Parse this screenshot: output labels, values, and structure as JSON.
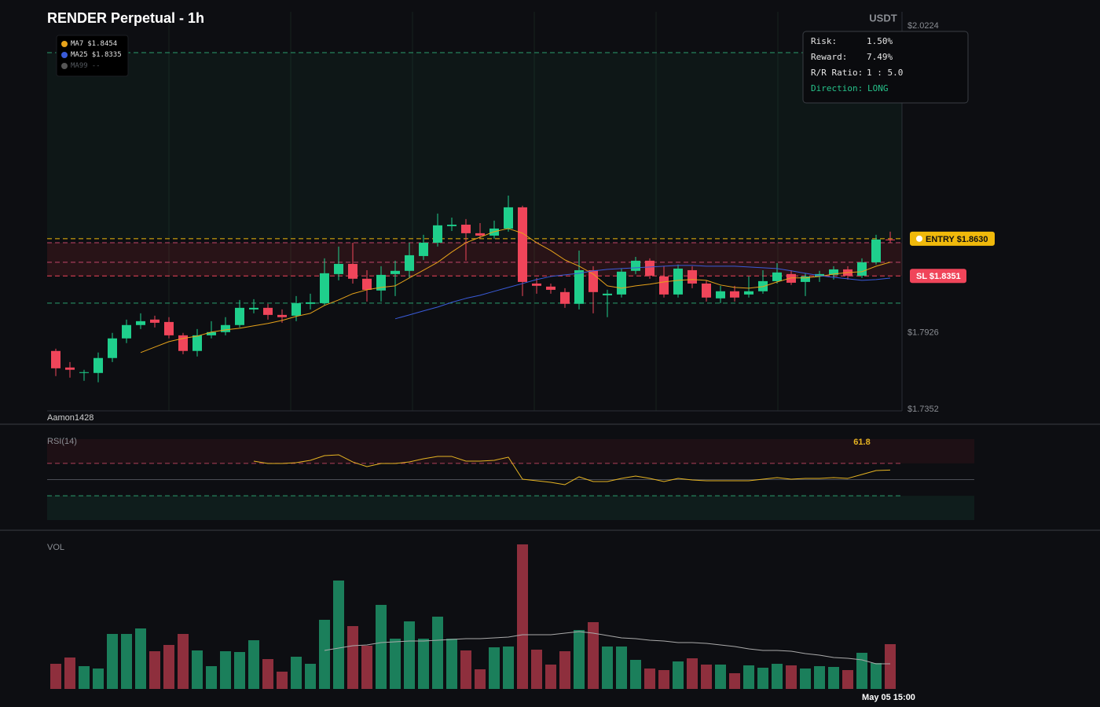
{
  "title": "RENDER Perpetual - 1h",
  "watermark": "Aamon1428",
  "chart_data": [
    {
      "type": "candlestick",
      "unit_label": "USDT",
      "up_color": "#1fcf8c",
      "down_color": "#f0455a",
      "ylim": [
        1.7352,
        2.0224
      ],
      "yticks": [
        {
          "value": 2.0224,
          "label": "$2.0224"
        },
        {
          "value": 1.7926,
          "label": "$1.7926"
        },
        {
          "value": 1.7352,
          "label": "$1.7352"
        }
      ],
      "ohlc": [
        [
          1.7789,
          1.7806,
          1.7601,
          1.7659
        ],
        [
          1.7665,
          1.7706,
          1.7589,
          1.7648
        ],
        [
          1.7624,
          1.7648,
          1.7565,
          1.763
        ],
        [
          1.7624,
          1.7777,
          1.7554,
          1.7736
        ],
        [
          1.7736,
          1.7924,
          1.7706,
          1.7883
        ],
        [
          1.7883,
          1.8024,
          1.7848,
          1.7983
        ],
        [
          1.7983,
          1.8071,
          1.7953,
          1.8012
        ],
        [
          1.8024,
          1.8053,
          1.7965,
          1.8
        ],
        [
          1.8006,
          1.8042,
          1.7883,
          1.7906
        ],
        [
          1.7906,
          1.7924,
          1.7765,
          1.7789
        ],
        [
          1.7789,
          1.7953,
          1.7748,
          1.7906
        ],
        [
          1.7906,
          1.8012,
          1.7883,
          1.793
        ],
        [
          1.793,
          1.8042,
          1.7906,
          1.7983
        ],
        [
          1.7983,
          1.8171,
          1.7965,
          1.8112
        ],
        [
          1.81,
          1.8177,
          1.8071,
          1.8112
        ],
        [
          1.8112,
          1.8142,
          1.8024,
          1.8059
        ],
        [
          1.8059,
          1.81,
          1.8,
          1.8042
        ],
        [
          1.8053,
          1.82,
          1.8012,
          1.8147
        ],
        [
          1.8142,
          1.8218,
          1.81,
          1.8153
        ],
        [
          1.8147,
          1.8483,
          1.813,
          1.8371
        ],
        [
          1.8365,
          1.8571,
          1.8318,
          1.8441
        ],
        [
          1.8441,
          1.86,
          1.8294,
          1.833
        ],
        [
          1.833,
          1.8394,
          1.8159,
          1.8247
        ],
        [
          1.8242,
          1.8424,
          1.8159,
          1.8359
        ],
        [
          1.8365,
          1.8465,
          1.82,
          1.8389
        ],
        [
          1.8389,
          1.86,
          1.8336,
          1.8506
        ],
        [
          1.85,
          1.8659,
          1.8471,
          1.86
        ],
        [
          1.86,
          1.8818,
          1.8571,
          1.873
        ],
        [
          1.8724,
          1.8788,
          1.8688,
          1.8735
        ],
        [
          1.8735,
          1.8777,
          1.8465,
          1.8671
        ],
        [
          1.8671,
          1.8747,
          1.863,
          1.8653
        ],
        [
          1.8653,
          1.8765,
          1.863,
          1.8706
        ],
        [
          1.8706,
          1.8953,
          1.8683,
          1.8865
        ],
        [
          1.8865,
          1.8877,
          1.82,
          1.8306
        ],
        [
          1.8294,
          1.8336,
          1.8218,
          1.8277
        ],
        [
          1.8271,
          1.8294,
          1.8218,
          1.8247
        ],
        [
          1.823,
          1.8259,
          1.8112,
          1.8142
        ],
        [
          1.8142,
          1.8541,
          1.81,
          1.8394
        ],
        [
          1.8394,
          1.8424,
          1.8071,
          1.823
        ],
        [
          1.8206,
          1.8247,
          1.8042,
          1.8218
        ],
        [
          1.8212,
          1.8406,
          1.8189,
          1.8383
        ],
        [
          1.8389,
          1.8494,
          1.8365,
          1.8465
        ],
        [
          1.8465,
          1.8483,
          1.833,
          1.8353
        ],
        [
          1.8347,
          1.8424,
          1.8189,
          1.8212
        ],
        [
          1.8212,
          1.8436,
          1.8189,
          1.8406
        ],
        [
          1.8394,
          1.8424,
          1.8259,
          1.8294
        ],
        [
          1.8294,
          1.8318,
          1.8159,
          1.8189
        ],
        [
          1.8183,
          1.8277,
          1.8147,
          1.8236
        ],
        [
          1.8236,
          1.8277,
          1.8159,
          1.8189
        ],
        [
          1.8212,
          1.8347,
          1.8189,
          1.8236
        ],
        [
          1.8236,
          1.8394,
          1.8218,
          1.8312
        ],
        [
          1.8312,
          1.8447,
          1.8294,
          1.8377
        ],
        [
          1.8365,
          1.8394,
          1.8283,
          1.83
        ],
        [
          1.8306,
          1.8371,
          1.82,
          1.8347
        ],
        [
          1.8347,
          1.8389,
          1.8306,
          1.8365
        ],
        [
          1.8359,
          1.8424,
          1.8324,
          1.84
        ],
        [
          1.84,
          1.8424,
          1.8324,
          1.8353
        ],
        [
          1.8353,
          1.8483,
          1.8336,
          1.8453
        ],
        [
          1.8453,
          1.8659,
          1.8436,
          1.8624
        ],
        [
          1.8624,
          1.8683,
          1.86,
          1.8618
        ]
      ],
      "series": [
        {
          "name": "MA7",
          "color": "#e6a21a",
          "value_label": "$1.8454",
          "values": [
            null,
            null,
            null,
            null,
            null,
            null,
            1.7777,
            1.7818,
            1.7859,
            1.7883,
            1.79,
            1.793,
            1.7947,
            1.7959,
            1.7977,
            1.7995,
            1.8018,
            1.8048,
            1.8071,
            1.813,
            1.8171,
            1.8218,
            1.8247,
            1.8265,
            1.8277,
            1.8336,
            1.8394,
            1.8453,
            1.853,
            1.86,
            1.8641,
            1.8683,
            1.8706,
            1.8671,
            1.86,
            1.8541,
            1.8471,
            1.8424,
            1.8365,
            1.8277,
            1.8259,
            1.8277,
            1.8289,
            1.8306,
            1.8318,
            1.8324,
            1.8318,
            1.8283,
            1.8265,
            1.8259,
            1.8271,
            1.8306,
            1.8336,
            1.8336,
            1.8347,
            1.8365,
            1.8377,
            1.8383,
            1.8424,
            1.8454
          ]
        },
        {
          "name": "MA25",
          "color": "#3a5bd9",
          "value_label": "$1.8335",
          "values": [
            null,
            null,
            null,
            null,
            null,
            null,
            null,
            null,
            null,
            null,
            null,
            null,
            null,
            null,
            null,
            null,
            null,
            null,
            null,
            null,
            null,
            null,
            null,
            null,
            1.803,
            1.8059,
            1.8089,
            1.8118,
            1.8153,
            1.8183,
            1.8206,
            1.8236,
            1.8265,
            1.8294,
            1.8324,
            1.8347,
            1.8359,
            1.8371,
            1.8389,
            1.84,
            1.8406,
            1.8412,
            1.8418,
            1.8424,
            1.843,
            1.843,
            1.8424,
            1.8424,
            1.8424,
            1.8418,
            1.8412,
            1.8406,
            1.8389,
            1.8371,
            1.8353,
            1.8341,
            1.833,
            1.8318,
            1.8324,
            1.8335
          ]
        },
        {
          "name": "MA99",
          "color": "#555555",
          "value_label": "--",
          "values": []
        }
      ],
      "take_profit": {
        "value": 2.0024,
        "color": "#2a9d6e"
      },
      "entry": {
        "label": "ENTRY $1.8630",
        "value": 1.863,
        "color": "#f0b90b"
      },
      "stop_loss": {
        "label": "SL $1.8351",
        "value": 1.8351,
        "color": "#f0455a"
      },
      "levels": [
        {
          "value": 1.86,
          "color": "#c2466a"
        },
        {
          "value": 1.8453,
          "color": "#c2466a"
        },
        {
          "value": 1.8147,
          "color": "#2a9d6e"
        }
      ],
      "info": [
        {
          "label": "Risk:",
          "value": "1.50%"
        },
        {
          "label": "Reward:",
          "value": "7.49%"
        },
        {
          "label": "R/R Ratio:",
          "value": "1 : 5.0"
        },
        {
          "label": "Direction:",
          "value": "LONG",
          "color": "#26c28a"
        }
      ]
    },
    {
      "type": "line",
      "title": "RSI(14)",
      "color": "#e6b422",
      "ylim": [
        0,
        100
      ],
      "levels": [
        70,
        50,
        30
      ],
      "values": [
        null,
        null,
        null,
        null,
        null,
        null,
        null,
        null,
        null,
        null,
        null,
        null,
        null,
        null,
        72.8,
        69.9,
        69.9,
        70.9,
        73.8,
        79.6,
        80.6,
        71.8,
        66.0,
        69.9,
        69.9,
        71.8,
        75.7,
        78.6,
        78.6,
        72.8,
        72.8,
        73.8,
        77.7,
        50.5,
        48.5,
        46.6,
        43.7,
        53.4,
        47.6,
        47.6,
        51.5,
        54.4,
        51.5,
        47.6,
        51.5,
        49.5,
        48.5,
        48.5,
        48.5,
        48.5,
        50.5,
        52.4,
        50.5,
        51.5,
        51.5,
        52.4,
        51.5,
        56.3,
        61.2,
        61.8
      ]
    },
    {
      "type": "bar",
      "title": "VOL",
      "ylim": [
        0,
        190
      ],
      "up_color": "#1b7f5b",
      "down_color": "#8e2f3d",
      "ma_color": "#aaaaaa",
      "values": [
        32,
        40,
        29,
        26,
        70,
        70,
        77,
        48,
        56,
        70,
        49,
        29,
        48,
        47,
        62,
        38,
        22,
        41,
        32,
        88,
        138,
        80,
        55,
        107,
        64,
        86,
        64,
        92,
        64,
        49,
        25,
        53,
        54,
        184,
        50,
        31,
        48,
        75,
        85,
        54,
        54,
        37,
        26,
        24,
        35,
        39,
        31,
        31,
        20,
        30,
        27,
        32,
        30,
        26,
        29,
        28,
        24,
        46,
        33,
        57
      ],
      "ma_values": [
        null,
        null,
        null,
        null,
        null,
        null,
        null,
        null,
        null,
        null,
        null,
        null,
        null,
        null,
        null,
        null,
        null,
        null,
        null,
        49,
        52,
        55,
        56,
        59,
        60,
        61,
        61,
        62,
        63,
        64,
        64,
        65,
        66,
        69,
        69,
        69,
        71,
        73,
        71,
        68,
        65,
        64,
        62,
        61,
        59,
        59,
        58,
        56,
        54,
        51,
        49,
        49,
        48,
        45,
        43,
        40,
        39,
        37,
        32,
        32
      ],
      "categories": [
        null,
        null,
        null,
        null,
        null,
        null,
        null,
        null,
        null,
        null,
        null,
        null,
        null,
        null,
        null,
        null,
        null,
        null,
        null,
        null,
        null,
        null,
        null,
        null,
        null,
        null,
        null,
        null,
        null,
        null,
        null,
        null,
        null,
        null,
        null,
        null,
        null,
        null,
        null,
        null,
        null,
        null,
        null,
        null,
        null,
        null,
        null,
        null,
        null,
        null,
        null,
        null,
        null,
        null,
        null,
        null,
        null,
        null,
        null,
        "May 05 15:00"
      ]
    }
  ]
}
